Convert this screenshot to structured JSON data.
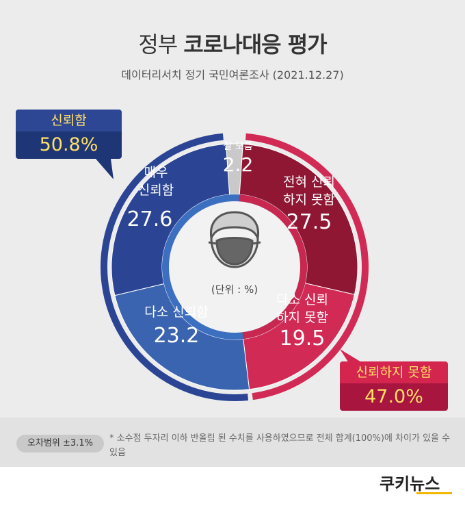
{
  "header": {
    "title_light": "정부",
    "title_bold": "코로나대응 평가",
    "subtitle": "데이터리서치 정기 국민여론조사 (2021.12.27)"
  },
  "chart_data": {
    "type": "pie",
    "unit_label": "(단위 : %)",
    "segments": [
      {
        "label": "잘 모름",
        "value": 2.2,
        "color": "#c9c9c9"
      },
      {
        "label": "전혀 신뢰 하지 못함",
        "value": 27.5,
        "color": "#8f1734"
      },
      {
        "label": "다소 신뢰 하지 못함",
        "value": 19.5,
        "color": "#d12a55"
      },
      {
        "label": "다소 신뢰함",
        "value": 23.2,
        "color": "#3a64b0"
      },
      {
        "label": "매우 신뢰함",
        "value": 27.6,
        "color": "#2b4494"
      }
    ],
    "groups": [
      {
        "label": "신뢰함",
        "value": "50.8%",
        "color": "#2b4494"
      },
      {
        "label": "신뢰하지 못함",
        "value": "47.0%",
        "color": "#d12a55"
      }
    ]
  },
  "labels": {
    "unknown": {
      "line1": "잘 모름",
      "value": "2.2"
    },
    "very_distrust": {
      "line1": "전혀 신뢰",
      "line2": "하지 못함",
      "value": "27.5"
    },
    "some_distrust": {
      "line1": "다소 신뢰",
      "line2": "하지 못함",
      "value": "19.5"
    },
    "some_trust": {
      "line1": "다소 신뢰함",
      "value": "23.2"
    },
    "very_trust": {
      "line1": "매우",
      "line2": "신뢰함",
      "value": "27.6"
    }
  },
  "callouts": {
    "trust_label": "신뢰함",
    "trust_value": "50.8%",
    "distrust_label": "신뢰하지 못함",
    "distrust_value": "47.0%"
  },
  "footer": {
    "margin": "오차범위 ±3.1%",
    "note": "* 소수점 두자리 이하 반올림 된 수치를 사용하였으므로 전체 합계(100%)에 차이가 있을 수 있음",
    "brand": "쿠키뉴스"
  }
}
